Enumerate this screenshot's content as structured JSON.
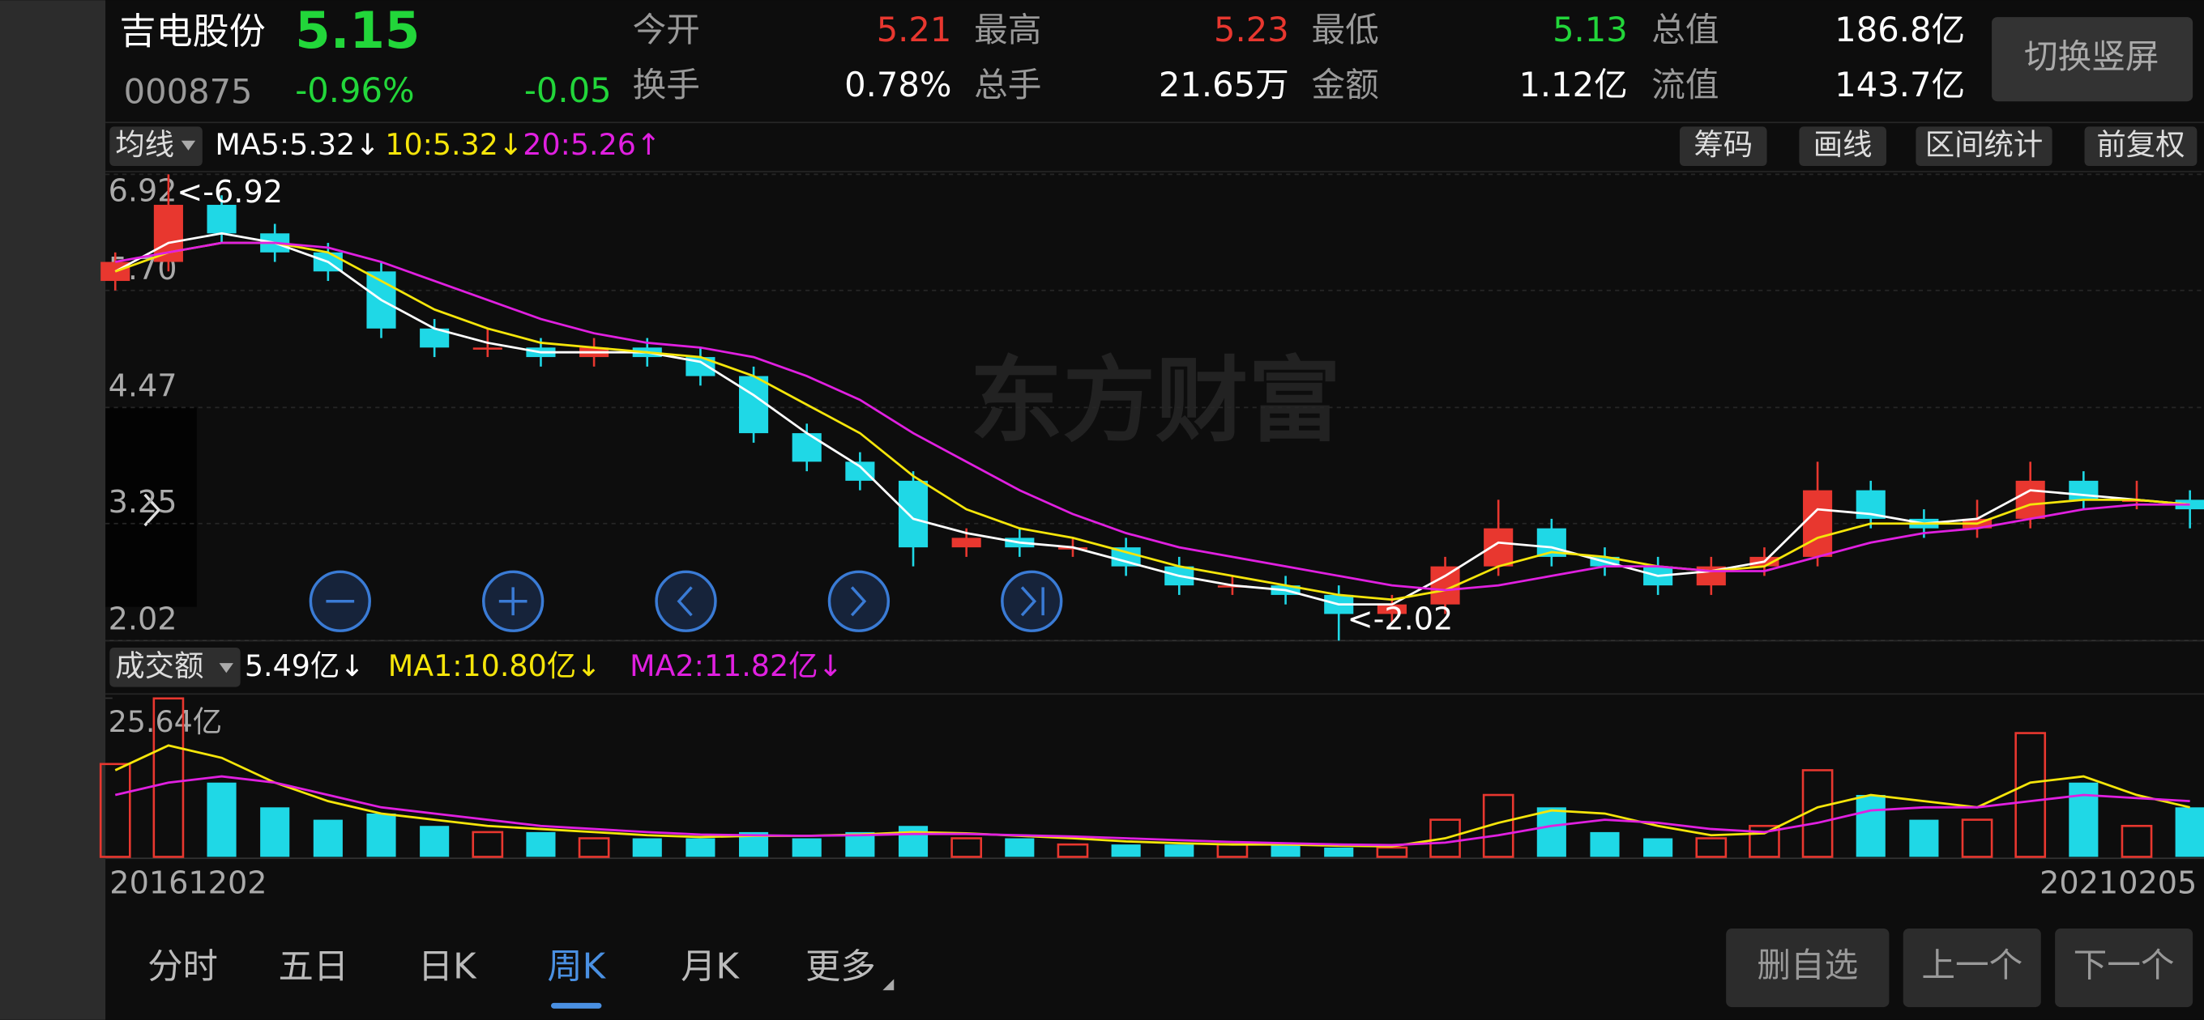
{
  "header": {
    "name": "吉电股份",
    "price": "5.15",
    "code": "000875",
    "change_pct": "-0.96%",
    "change": "-0.05",
    "button": "切换竖屏"
  },
  "stats": [
    {
      "label": "今开",
      "value": "5.21"
    },
    {
      "label": "最高",
      "value": "5.23"
    },
    {
      "label": "最低",
      "value": "5.13"
    },
    {
      "label": "总值",
      "value": "186.8亿"
    },
    {
      "label": "换手",
      "value": "0.78%"
    },
    {
      "label": "总手",
      "value": "21.65万"
    },
    {
      "label": "金额",
      "value": "1.12亿"
    },
    {
      "label": "流值",
      "value": "143.7亿"
    }
  ],
  "toolbar": {
    "ma_menu": "均线",
    "ma5": "MA5:5.32↓",
    "ma10": "10:5.32↓",
    "ma20": "20:5.26↑",
    "tools": [
      "筹码",
      "画线",
      "区间统计",
      "前复权"
    ]
  },
  "chart_data": [
    {
      "type": "candlestick",
      "watermark": "东方财富",
      "annotations": [
        "<-6.92",
        "<-2.02"
      ],
      "x_labels": [
        "20161202",
        "20210205"
      ],
      "ylim": [
        2.02,
        6.92
      ],
      "yticks": [
        6.92,
        {
          "value": 5.7,
          "label": "5.70"
        },
        4.47,
        3.25,
        2.02
      ],
      "grid": true,
      "up_color": "#e8372f",
      "down_color": "#1fd8e6",
      "open": [
        5.8,
        6.0,
        6.6,
        6.3,
        6.1,
        5.9,
        5.3,
        5.1,
        5.1,
        5.0,
        5.1,
        5.0,
        4.8,
        4.2,
        3.9,
        3.7,
        3.0,
        3.1,
        3.0,
        3.0,
        2.8,
        2.6,
        2.6,
        2.5,
        2.3,
        2.4,
        2.8,
        3.2,
        2.9,
        2.8,
        2.6,
        2.8,
        2.9,
        3.6,
        3.3,
        3.2,
        3.3,
        3.7,
        3.5,
        3.5
      ],
      "high": [
        6.1,
        6.92,
        6.7,
        6.4,
        6.2,
        6.0,
        5.4,
        5.3,
        5.2,
        5.2,
        5.2,
        5.1,
        4.9,
        4.3,
        4.0,
        3.8,
        3.2,
        3.2,
        3.1,
        3.1,
        2.9,
        2.7,
        2.7,
        2.6,
        2.5,
        2.9,
        3.5,
        3.3,
        3.0,
        2.9,
        2.9,
        3.0,
        3.9,
        3.7,
        3.4,
        3.5,
        3.9,
        3.8,
        3.7,
        3.6
      ],
      "low": [
        5.7,
        5.9,
        6.2,
        6.0,
        5.8,
        5.2,
        5.0,
        5.0,
        4.9,
        4.9,
        4.9,
        4.7,
        4.1,
        3.8,
        3.6,
        2.8,
        2.9,
        2.9,
        2.9,
        2.7,
        2.5,
        2.5,
        2.4,
        2.02,
        2.2,
        2.3,
        2.7,
        2.8,
        2.7,
        2.5,
        2.5,
        2.7,
        2.8,
        3.2,
        3.1,
        3.1,
        3.2,
        3.4,
        3.4,
        3.2
      ],
      "close": [
        6.0,
        6.6,
        6.3,
        6.1,
        5.9,
        5.3,
        5.1,
        5.1,
        5.0,
        5.1,
        5.0,
        4.8,
        4.2,
        3.9,
        3.7,
        3.0,
        3.1,
        3.0,
        3.0,
        2.8,
        2.6,
        2.6,
        2.5,
        2.3,
        2.4,
        2.8,
        3.2,
        2.9,
        2.8,
        2.6,
        2.8,
        2.9,
        3.6,
        3.3,
        3.2,
        3.3,
        3.7,
        3.5,
        3.5,
        3.4
      ],
      "series": [
        {
          "color": "#ffffff",
          "values": [
            5.9,
            6.2,
            6.3,
            6.2,
            6.0,
            5.6,
            5.3,
            5.15,
            5.05,
            5.05,
            5.05,
            4.95,
            4.6,
            4.2,
            3.85,
            3.3,
            3.15,
            3.05,
            3.0,
            2.85,
            2.7,
            2.6,
            2.55,
            2.4,
            2.4,
            2.7,
            3.05,
            3.0,
            2.85,
            2.7,
            2.75,
            2.85,
            3.4,
            3.35,
            3.25,
            3.3,
            3.6,
            3.55,
            3.5,
            3.45
          ]
        },
        {
          "color": "#f5e50a",
          "values": [
            5.9,
            6.1,
            6.2,
            6.2,
            6.1,
            5.8,
            5.5,
            5.3,
            5.15,
            5.1,
            5.05,
            5.0,
            4.8,
            4.5,
            4.2,
            3.75,
            3.4,
            3.2,
            3.1,
            2.95,
            2.8,
            2.7,
            2.6,
            2.5,
            2.45,
            2.55,
            2.8,
            2.95,
            2.9,
            2.8,
            2.75,
            2.8,
            3.1,
            3.25,
            3.25,
            3.25,
            3.45,
            3.5,
            3.5,
            3.45
          ]
        },
        {
          "color": "#e020e0",
          "values": [
            6.0,
            6.1,
            6.2,
            6.2,
            6.15,
            6.0,
            5.8,
            5.6,
            5.4,
            5.25,
            5.15,
            5.1,
            5.0,
            4.8,
            4.55,
            4.2,
            3.9,
            3.6,
            3.35,
            3.15,
            3.0,
            2.9,
            2.8,
            2.7,
            2.6,
            2.55,
            2.6,
            2.7,
            2.8,
            2.8,
            2.75,
            2.75,
            2.9,
            3.05,
            3.15,
            3.2,
            3.3,
            3.4,
            3.45,
            3.45
          ]
        }
      ]
    },
    {
      "type": "bar",
      "menu": "成交额",
      "legend": [
        "5.49亿↓",
        "MA1:10.80亿↓",
        "MA2:11.82亿↓"
      ],
      "ylim": [
        0,
        25.64
      ],
      "yticks": [
        {
          "value": 25.64,
          "label": "25.64亿"
        }
      ],
      "values": [
        15,
        25.6,
        12,
        8,
        6,
        7,
        5,
        4,
        4,
        3,
        3,
        3,
        4,
        3,
        4,
        5,
        3,
        3,
        2,
        2,
        2,
        2,
        2,
        1.5,
        1.5,
        6,
        10,
        8,
        4,
        3,
        3,
        5,
        14,
        10,
        6,
        6,
        20,
        12,
        5,
        8
      ],
      "series": [
        {
          "color": "#f5e50a",
          "values": [
            14,
            18,
            16,
            12,
            9,
            7,
            6,
            5,
            4.5,
            4,
            3.5,
            3.2,
            3.4,
            3.4,
            3.6,
            4,
            3.8,
            3.4,
            3,
            2.5,
            2.2,
            2,
            2,
            1.8,
            1.7,
            3,
            5.5,
            7.5,
            7,
            5,
            3.5,
            3.8,
            8,
            10,
            9,
            8,
            12,
            13,
            10,
            8
          ]
        },
        {
          "color": "#e020e0",
          "values": [
            10,
            12,
            13,
            12,
            10,
            8,
            7,
            6,
            5,
            4.5,
            4,
            3.6,
            3.5,
            3.4,
            3.5,
            3.7,
            3.7,
            3.5,
            3.3,
            3,
            2.7,
            2.4,
            2.2,
            2,
            1.9,
            2.3,
            3.5,
            5,
            6,
            5.5,
            4.5,
            4,
            5.5,
            7.5,
            8,
            8,
            9,
            10,
            9.5,
            9
          ]
        }
      ]
    }
  ],
  "tabs": {
    "items": [
      "分时",
      "五日",
      "日K",
      "周K",
      "月K",
      "更多"
    ],
    "active": 3
  },
  "buttons": [
    "删自选",
    "上一个",
    "下一个"
  ]
}
